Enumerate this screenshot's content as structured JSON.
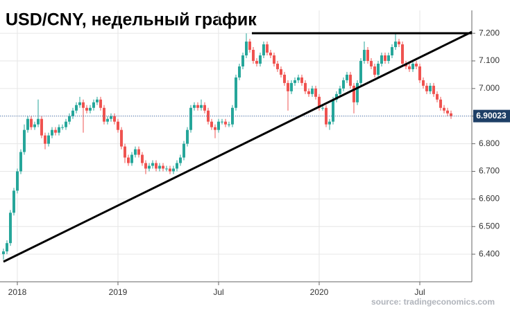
{
  "chart_data": {
    "type": "candlestick",
    "title": "USD/CNY, недельный график",
    "source": "source: tradingeconomics.com",
    "x": [
      0,
      1,
      2,
      3,
      4,
      5,
      6,
      7,
      8,
      9,
      10,
      11,
      12,
      13,
      14,
      15,
      16,
      17,
      18,
      19,
      20,
      21,
      22,
      23,
      24,
      25,
      26,
      27,
      28,
      29,
      30,
      31,
      32,
      33,
      34,
      35,
      36,
      37,
      38,
      39,
      40,
      41,
      42,
      43,
      44,
      45,
      46,
      47,
      48,
      49,
      50,
      51,
      52,
      53,
      54,
      55,
      56,
      57,
      58,
      59,
      60,
      61,
      62,
      63,
      64,
      65,
      66,
      67,
      68,
      69,
      70,
      71,
      72,
      73,
      74,
      75,
      76,
      77,
      78,
      79,
      80,
      81,
      82,
      83,
      84,
      85,
      86,
      87,
      88,
      89,
      90,
      91,
      92,
      93,
      94,
      95,
      96,
      97,
      98,
      99,
      100,
      101,
      102,
      103,
      104,
      105,
      106,
      107,
      108,
      109,
      110,
      111,
      112,
      113,
      114,
      115,
      116,
      117,
      118,
      119,
      120,
      121,
      122,
      123,
      124,
      125,
      126,
      127,
      128,
      129
    ],
    "open": [
      6.4,
      6.41,
      6.44,
      6.55,
      6.63,
      6.7,
      6.77,
      6.85,
      6.89,
      6.86,
      6.87,
      6.89,
      6.83,
      6.8,
      6.83,
      6.85,
      6.84,
      6.86,
      6.86,
      6.88,
      6.9,
      6.92,
      6.94,
      6.95,
      6.93,
      6.92,
      6.93,
      6.95,
      6.96,
      6.93,
      6.88,
      6.89,
      6.9,
      6.88,
      6.85,
      6.79,
      6.75,
      6.73,
      6.76,
      6.78,
      6.76,
      6.73,
      6.71,
      6.72,
      6.73,
      6.71,
      6.72,
      6.71,
      6.71,
      6.7,
      6.71,
      6.73,
      6.75,
      6.8,
      6.85,
      6.93,
      6.94,
      6.93,
      6.94,
      6.92,
      6.88,
      6.86,
      6.85,
      6.88,
      6.88,
      6.87,
      6.87,
      6.93,
      7.04,
      7.08,
      7.12,
      7.17,
      7.14,
      7.1,
      7.09,
      7.12,
      7.16,
      7.13,
      7.12,
      7.09,
      7.07,
      7.05,
      7.02,
      6.99,
      7.02,
      7.03,
      7.04,
      7.02,
      6.99,
      6.98,
      7.0,
      6.97,
      6.93,
      6.93,
      6.87,
      6.88,
      6.96,
      6.98,
      7.0,
      7.03,
      7.05,
      7.01,
      6.95,
      7.02,
      7.1,
      7.14,
      7.1,
      7.08,
      7.05,
      7.09,
      7.12,
      7.1,
      7.12,
      7.15,
      7.17,
      7.16,
      7.09,
      7.08,
      7.07,
      7.09,
      7.08,
      7.03,
      7.01,
      6.99,
      7.01,
      6.98,
      6.96,
      6.93,
      6.92,
      6.91
    ],
    "high": [
      6.42,
      6.45,
      6.56,
      6.64,
      6.71,
      6.78,
      6.87,
      6.9,
      6.9,
      6.88,
      6.96,
      6.9,
      6.84,
      6.84,
      6.86,
      6.86,
      6.87,
      6.87,
      6.89,
      6.91,
      6.93,
      6.95,
      6.97,
      6.96,
      6.94,
      6.94,
      6.96,
      6.97,
      6.97,
      6.94,
      6.9,
      6.91,
      6.91,
      6.89,
      6.86,
      6.8,
      6.76,
      6.77,
      6.79,
      6.79,
      6.77,
      6.74,
      6.73,
      6.74,
      6.74,
      6.73,
      6.73,
      6.72,
      6.72,
      6.72,
      6.74,
      6.76,
      6.81,
      6.86,
      6.94,
      6.95,
      6.95,
      6.96,
      6.95,
      6.93,
      6.89,
      6.87,
      6.89,
      6.89,
      6.89,
      6.88,
      6.94,
      7.05,
      7.09,
      7.13,
      7.2,
      7.18,
      7.15,
      7.11,
      7.13,
      7.17,
      7.17,
      7.14,
      7.13,
      7.1,
      7.08,
      7.06,
      7.03,
      7.03,
      7.04,
      7.05,
      7.05,
      7.03,
      7.0,
      7.01,
      7.01,
      6.98,
      6.94,
      6.94,
      6.89,
      6.97,
      6.99,
      7.01,
      7.04,
      7.06,
      7.06,
      7.02,
      7.03,
      7.11,
      7.17,
      7.15,
      7.11,
      7.09,
      7.1,
      7.13,
      7.13,
      7.13,
      7.16,
      7.2,
      7.18,
      7.17,
      7.1,
      7.09,
      7.1,
      7.1,
      7.09,
      7.04,
      7.02,
      7.02,
      7.02,
      6.99,
      6.97,
      6.94,
      6.93,
      6.92
    ],
    "low": [
      6.38,
      6.4,
      6.43,
      6.54,
      6.62,
      6.69,
      6.76,
      6.84,
      6.85,
      6.85,
      6.86,
      6.82,
      6.78,
      6.79,
      6.82,
      6.83,
      6.83,
      6.85,
      6.85,
      6.87,
      6.89,
      6.91,
      6.93,
      6.84,
      6.91,
      6.91,
      6.92,
      6.94,
      6.92,
      6.87,
      6.87,
      6.88,
      6.87,
      6.84,
      6.78,
      6.73,
      6.72,
      6.72,
      6.75,
      6.75,
      6.72,
      6.69,
      6.7,
      6.71,
      6.7,
      6.7,
      6.7,
      6.7,
      6.69,
      6.69,
      6.7,
      6.72,
      6.74,
      6.79,
      6.84,
      6.92,
      6.92,
      6.92,
      6.91,
      6.87,
      6.85,
      6.82,
      6.84,
      6.87,
      6.86,
      6.86,
      6.86,
      6.92,
      7.03,
      7.07,
      7.11,
      7.13,
      7.09,
      7.08,
      7.08,
      7.11,
      7.12,
      7.11,
      7.08,
      7.06,
      7.04,
      7.01,
      6.92,
      6.98,
      7.01,
      7.02,
      7.01,
      6.98,
      6.97,
      6.97,
      6.96,
      6.92,
      6.92,
      6.86,
      6.85,
      6.87,
      6.95,
      6.97,
      6.99,
      7.02,
      7.0,
      6.91,
      6.94,
      7.01,
      7.09,
      7.09,
      7.07,
      7.04,
      7.04,
      7.08,
      7.09,
      7.09,
      7.11,
      7.14,
      7.15,
      7.08,
      7.07,
      7.06,
      7.06,
      7.07,
      7.02,
      7.0,
      6.98,
      6.98,
      6.97,
      6.95,
      6.92,
      6.91,
      6.9,
      6.89
    ],
    "close": [
      6.41,
      6.44,
      6.55,
      6.63,
      6.7,
      6.77,
      6.85,
      6.89,
      6.86,
      6.87,
      6.89,
      6.83,
      6.8,
      6.83,
      6.85,
      6.84,
      6.86,
      6.86,
      6.88,
      6.9,
      6.92,
      6.94,
      6.95,
      6.93,
      6.92,
      6.93,
      6.95,
      6.96,
      6.93,
      6.88,
      6.89,
      6.9,
      6.88,
      6.85,
      6.79,
      6.75,
      6.73,
      6.76,
      6.78,
      6.76,
      6.73,
      6.71,
      6.72,
      6.73,
      6.71,
      6.72,
      6.71,
      6.71,
      6.7,
      6.71,
      6.73,
      6.75,
      6.8,
      6.85,
      6.93,
      6.94,
      6.93,
      6.94,
      6.92,
      6.88,
      6.86,
      6.85,
      6.88,
      6.88,
      6.87,
      6.87,
      6.93,
      7.04,
      7.08,
      7.12,
      7.17,
      7.14,
      7.1,
      7.09,
      7.12,
      7.16,
      7.13,
      7.12,
      7.09,
      7.07,
      7.05,
      7.02,
      6.99,
      7.02,
      7.03,
      7.04,
      7.02,
      6.99,
      6.98,
      7.0,
      6.97,
      6.93,
      6.93,
      6.87,
      6.88,
      6.96,
      6.98,
      7.0,
      7.03,
      7.05,
      7.01,
      6.95,
      7.02,
      7.1,
      7.14,
      7.1,
      7.08,
      7.05,
      7.09,
      7.12,
      7.1,
      7.12,
      7.15,
      7.17,
      7.16,
      7.09,
      7.08,
      7.07,
      7.09,
      7.08,
      7.03,
      7.01,
      6.99,
      7.01,
      6.98,
      6.96,
      6.93,
      6.92,
      6.91,
      6.90023
    ],
    "up_color": "#26a69a",
    "down_color": "#ef5350",
    "xlim": [
      -1,
      135
    ],
    "xticks": [
      {
        "value": 4,
        "label": "2018"
      },
      {
        "value": 33,
        "label": "2019"
      },
      {
        "value": 62,
        "label": "Jul"
      },
      {
        "value": 91,
        "label": "2020"
      },
      {
        "value": 120,
        "label": "Jul"
      }
    ],
    "ylim": [
      6.3,
      7.283
    ],
    "yticks": [
      {
        "value": 6.4,
        "label": "6.400"
      },
      {
        "value": 6.5,
        "label": "6.500"
      },
      {
        "value": 6.6,
        "label": "6.600"
      },
      {
        "value": 6.7,
        "label": "6.700"
      },
      {
        "value": 6.8,
        "label": "6.800"
      },
      {
        "value": 6.9,
        "label": "6.900"
      },
      {
        "value": 7.0,
        "label": "7.000"
      },
      {
        "value": 7.1,
        "label": "7.100"
      },
      {
        "value": 7.2,
        "label": "7.200"
      }
    ],
    "grid": true
  }
}
